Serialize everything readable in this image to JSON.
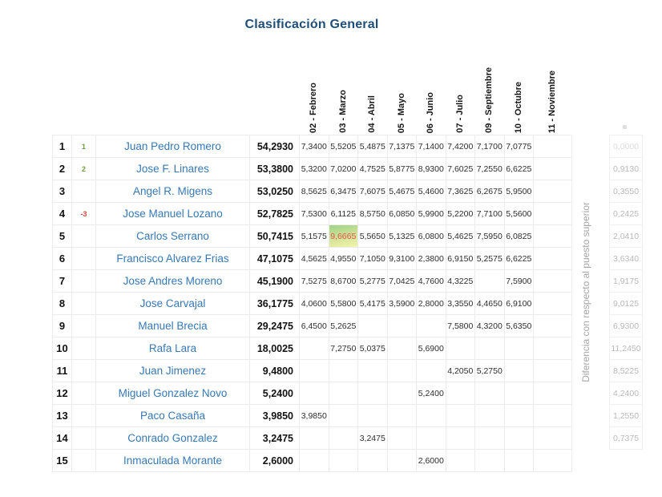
{
  "title": "Clasificación General",
  "right_label": "Diferencia con respecto al puesto superior",
  "columns": [
    "02 - Febrero",
    "03 - Marzo",
    "04 - Abril",
    "05 - Mayo",
    "06 - Junio",
    "07 - Julio",
    "09 - Septiembre",
    "10 - Octubre",
    "11 - Noviembre"
  ],
  "colors": {
    "title": "#1f4e79",
    "player_name": "#3878b4",
    "movement_up": "#6f9e3e",
    "movement_down": "#cf4a38",
    "highlight_background_top": "#9fd487",
    "highlight_background_bottom": "#f2f4ac",
    "highlight_text": "#e0554a",
    "difference_text": "#b9b9b9"
  },
  "rows": [
    {
      "pos": "1",
      "move": "1",
      "move_dir": "up",
      "name": "Juan Pedro Romero",
      "total": "54,2930",
      "months": [
        "7,3400",
        "5,5205",
        "5,4875",
        "7,1375",
        "7,1400",
        "7,4200",
        "7,1700",
        "7,0775",
        ""
      ],
      "diff": "0,0000"
    },
    {
      "pos": "2",
      "move": "2",
      "move_dir": "up",
      "name": "Jose F. Linares",
      "total": "53,3800",
      "months": [
        "5,3200",
        "7,0200",
        "4,7525",
        "5,8775",
        "8,9300",
        "7,6025",
        "7,2550",
        "6,6225",
        ""
      ],
      "diff": "0,9130"
    },
    {
      "pos": "3",
      "move": "",
      "move_dir": "",
      "name": "Angel R. Migens",
      "total": "53,0250",
      "months": [
        "8,5625",
        "6,3475",
        "7,6075",
        "5,4675",
        "5,4600",
        "7,3625",
        "6,2675",
        "5,9500",
        ""
      ],
      "diff": "0,3550"
    },
    {
      "pos": "4",
      "move": "-3",
      "move_dir": "down",
      "name": "Jose Manuel Lozano",
      "total": "52,7825",
      "months": [
        "7,5300",
        "6,1125",
        "8,5750",
        "6,0850",
        "5,9900",
        "5,2200",
        "7,7100",
        "5,5600",
        ""
      ],
      "diff": "0,2425"
    },
    {
      "pos": "5",
      "move": "",
      "move_dir": "",
      "name": "Carlos Serrano",
      "total": "50,7415",
      "months": [
        "5,1575",
        "9,6665",
        "5,5650",
        "5,1325",
        "6,0800",
        "5,4625",
        "7,5950",
        "6,0825",
        ""
      ],
      "diff": "2,0410",
      "highlight_month": 1
    },
    {
      "pos": "6",
      "move": "",
      "move_dir": "",
      "name": "Francisco Alvarez Frias",
      "total": "47,1075",
      "months": [
        "4,5625",
        "4,9550",
        "7,1050",
        "9,3100",
        "2,3800",
        "6,9150",
        "5,2575",
        "6,6225",
        ""
      ],
      "diff": "3,6340"
    },
    {
      "pos": "7",
      "move": "",
      "move_dir": "",
      "name": "Jose Andres Moreno",
      "total": "45,1900",
      "months": [
        "7,5275",
        "8,6700",
        "5,2775",
        "7,0425",
        "4,7600",
        "4,3225",
        "",
        "7,5900",
        ""
      ],
      "diff": "1,9175"
    },
    {
      "pos": "8",
      "move": "",
      "move_dir": "",
      "name": "Jose Carvajal",
      "total": "36,1775",
      "months": [
        "4,0600",
        "5,5800",
        "5,4175",
        "3,5900",
        "2,8000",
        "3,3550",
        "4,4650",
        "6,9100",
        ""
      ],
      "diff": "9,0125"
    },
    {
      "pos": "9",
      "move": "",
      "move_dir": "",
      "name": "Manuel Brecia",
      "total": "29,2475",
      "months": [
        "6,4500",
        "5,2625",
        "",
        "",
        "",
        "7,5800",
        "4,3200",
        "5,6350",
        ""
      ],
      "diff": "6,9300"
    },
    {
      "pos": "10",
      "move": "",
      "move_dir": "",
      "name": "Rafa Lara",
      "total": "18,0025",
      "months": [
        "",
        "7,2750",
        "5,0375",
        "",
        "5,6900",
        "",
        "",
        "",
        ""
      ],
      "diff": "11,2450"
    },
    {
      "pos": "11",
      "move": "",
      "move_dir": "",
      "name": "Juan Jimenez",
      "total": "9,4800",
      "months": [
        "",
        "",
        "",
        "",
        "",
        "4,2050",
        "5,2750",
        "",
        ""
      ],
      "diff": "8,5225"
    },
    {
      "pos": "12",
      "move": "",
      "move_dir": "",
      "name": "Miguel Gonzalez Novo",
      "total": "5,2400",
      "months": [
        "",
        "",
        "",
        "",
        "5,2400",
        "",
        "",
        "",
        ""
      ],
      "diff": "4,2400"
    },
    {
      "pos": "13",
      "move": "",
      "move_dir": "",
      "name": "Paco Casaña",
      "total": "3,9850",
      "months": [
        "3,9850",
        "",
        "",
        "",
        "",
        "",
        "",
        "",
        ""
      ],
      "diff": "1,2550"
    },
    {
      "pos": "14",
      "move": "",
      "move_dir": "",
      "name": "Conrado Gonzalez",
      "total": "3,2475",
      "months": [
        "",
        "",
        "3,2475",
        "",
        "",
        "",
        "",
        "",
        ""
      ],
      "diff": "0,7375"
    },
    {
      "pos": "15",
      "move": "",
      "move_dir": "",
      "name": "Inmaculada Morante",
      "total": "2,6000",
      "months": [
        "",
        "",
        "",
        "",
        "2,6000",
        "",
        "",
        "",
        ""
      ],
      "diff": ""
    }
  ]
}
